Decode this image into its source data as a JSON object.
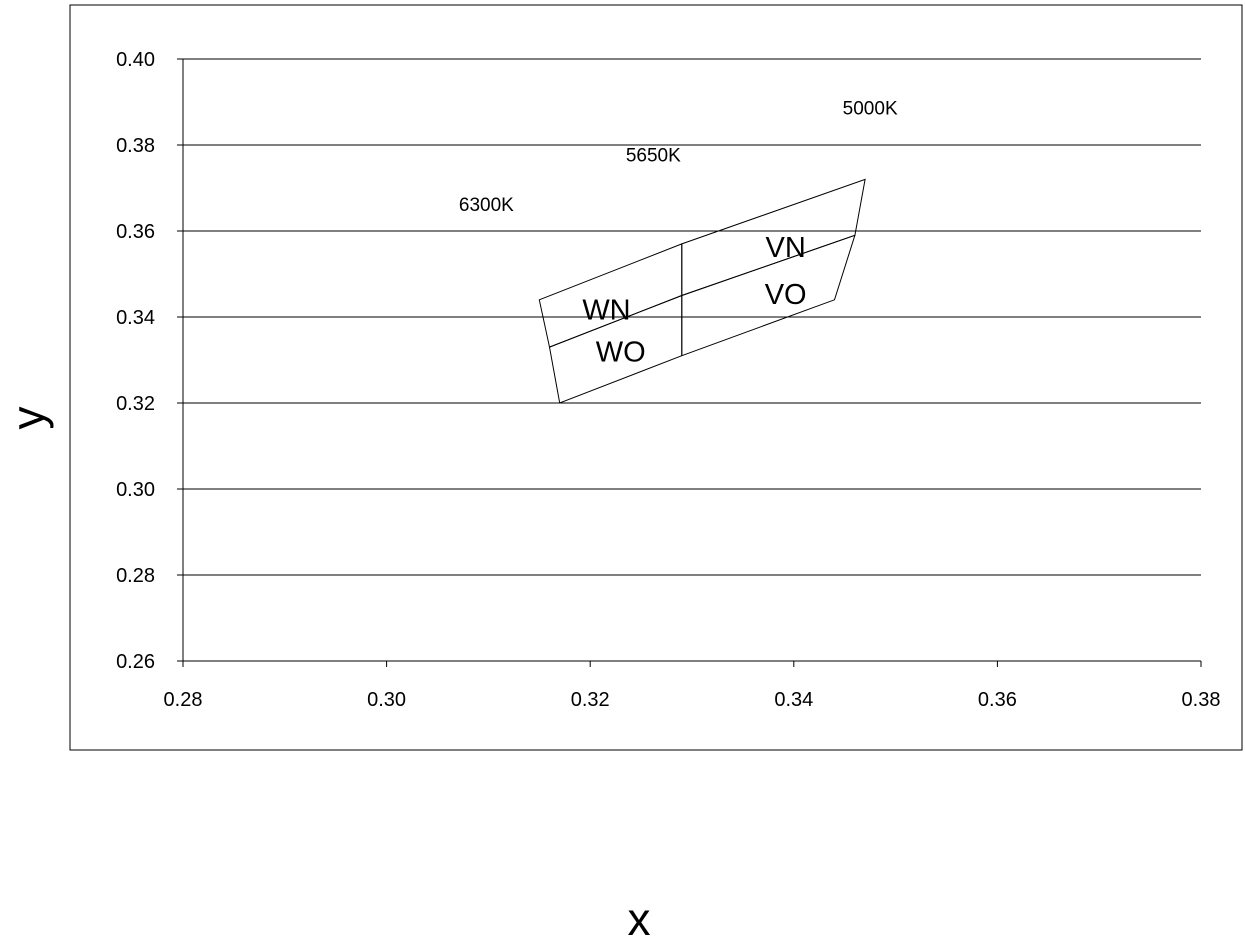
{
  "chart_data": {
    "type": "scatter",
    "title": "",
    "xlabel": "x",
    "ylabel": "y",
    "xlim": [
      0.28,
      0.38
    ],
    "ylim": [
      0.26,
      0.4
    ],
    "xticks": [
      "0.28",
      "0.30",
      "0.32",
      "0.34",
      "0.36",
      "0.38"
    ],
    "yticks": [
      "0.26",
      "0.28",
      "0.30",
      "0.32",
      "0.34",
      "0.36",
      "0.38",
      "0.40"
    ],
    "grid": "horizontal",
    "legend": "none",
    "regions": [
      {
        "label": "WN",
        "label_at": [
          0.3216,
          0.3418
        ],
        "points": [
          [
            0.315,
            0.344
          ],
          [
            0.329,
            0.357
          ],
          [
            0.329,
            0.345
          ],
          [
            0.316,
            0.333
          ]
        ]
      },
      {
        "label": "WO",
        "label_at": [
          0.323,
          0.332
        ],
        "points": [
          [
            0.316,
            0.333
          ],
          [
            0.329,
            0.345
          ],
          [
            0.329,
            0.331
          ],
          [
            0.317,
            0.32
          ]
        ]
      },
      {
        "label": "VN",
        "label_at": [
          0.3392,
          0.3563
        ],
        "points": [
          [
            0.329,
            0.357
          ],
          [
            0.347,
            0.372
          ],
          [
            0.346,
            0.359
          ],
          [
            0.329,
            0.345
          ]
        ]
      },
      {
        "label": "VO",
        "label_at": [
          0.3392,
          0.3454
        ],
        "points": [
          [
            0.329,
            0.345
          ],
          [
            0.346,
            0.359
          ],
          [
            0.344,
            0.344
          ],
          [
            0.329,
            0.331
          ]
        ]
      }
    ],
    "annotations": [
      {
        "text": "5000K",
        "x": 0.3475,
        "y": 0.3887
      },
      {
        "text": "5650K",
        "x": 0.3262,
        "y": 0.3778
      },
      {
        "text": "6300K",
        "x": 0.3098,
        "y": 0.3663
      }
    ]
  }
}
